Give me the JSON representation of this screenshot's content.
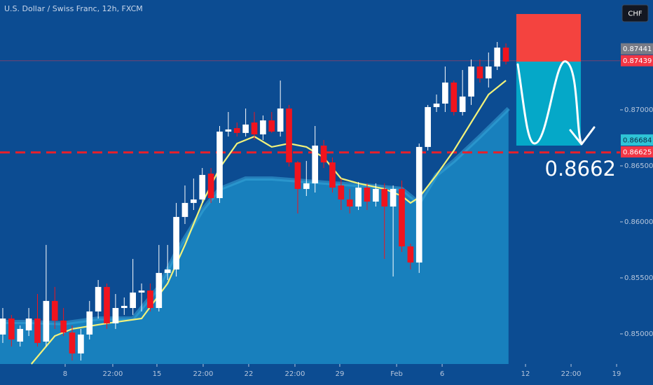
{
  "chart_data": {
    "type": "candlestick",
    "title": "U.S. Dollar / Swiss Franc, 12h, FXCM",
    "currency_button": "CHF",
    "up_color": "#ffffff",
    "down_color": "#f0141e",
    "x": [
      0,
      1,
      2,
      3,
      4,
      5,
      6,
      7,
      8,
      9,
      10,
      11,
      12,
      13,
      14,
      15,
      16,
      17,
      18,
      19,
      20,
      21,
      22,
      23,
      24,
      25,
      26,
      27,
      28,
      29,
      30,
      31,
      32,
      33,
      34,
      35,
      36,
      37,
      38,
      39,
      40,
      41,
      42,
      43,
      44,
      45,
      46,
      47,
      48,
      49,
      50,
      51,
      52,
      53,
      54,
      55,
      56,
      57,
      58
    ],
    "open": [
      0.84994,
      0.85137,
      0.84931,
      0.85031,
      0.85137,
      0.84931,
      0.85294,
      0.85119,
      0.85012,
      0.84825,
      0.84994,
      0.852,
      0.85419,
      0.85094,
      0.85231,
      0.85231,
      0.85369,
      0.85387,
      0.85231,
      0.85544,
      0.85575,
      0.86044,
      0.86169,
      0.862,
      0.86431,
      0.86212,
      0.86806,
      0.86837,
      0.86794,
      0.86887,
      0.86781,
      0.86906,
      0.86806,
      0.87012,
      0.86531,
      0.86294,
      0.86344,
      0.86681,
      0.86531,
      0.86325,
      0.862,
      0.86137,
      0.86306,
      0.86181,
      0.86294,
      0.86137,
      0.86294,
      0.85781,
      0.85637,
      0.86669,
      0.87025,
      0.87056,
      0.87244,
      0.86981,
      0.87119,
      0.87387,
      0.87281,
      0.87387,
      0.87556
    ],
    "high": [
      0.85231,
      0.85169,
      0.85075,
      0.85231,
      0.85356,
      0.85794,
      0.85419,
      0.85231,
      0.85075,
      0.85044,
      0.85294,
      0.85481,
      0.8545,
      0.85356,
      0.85325,
      0.85669,
      0.8545,
      0.8545,
      0.85794,
      0.85794,
      0.86169,
      0.86325,
      0.86387,
      0.86481,
      0.86481,
      0.86856,
      0.86981,
      0.86887,
      0.87012,
      0.86981,
      0.8695,
      0.86981,
      0.87262,
      0.87044,
      0.86544,
      0.86544,
      0.86856,
      0.86731,
      0.86575,
      0.86387,
      0.86294,
      0.86356,
      0.86344,
      0.86344,
      0.86344,
      0.86325,
      0.86369,
      0.85806,
      0.867,
      0.87044,
      0.87137,
      0.87387,
      0.87262,
      0.87356,
      0.8745,
      0.8745,
      0.87512,
      0.87606,
      0.87594
    ],
    "low": [
      0.84919,
      0.84887,
      0.84887,
      0.84981,
      0.84887,
      0.84887,
      0.85044,
      0.84981,
      0.84762,
      0.84762,
      0.8495,
      0.85137,
      0.85044,
      0.85044,
      0.85169,
      0.85169,
      0.852,
      0.852,
      0.852,
      0.85481,
      0.85512,
      0.85981,
      0.86106,
      0.86169,
      0.86169,
      0.86169,
      0.86762,
      0.86762,
      0.86762,
      0.86731,
      0.86731,
      0.86794,
      0.86762,
      0.86494,
      0.86075,
      0.86231,
      0.86262,
      0.86481,
      0.86262,
      0.86106,
      0.86075,
      0.86106,
      0.86106,
      0.86137,
      0.85669,
      0.85512,
      0.85731,
      0.85575,
      0.85544,
      0.86637,
      0.86981,
      0.86981,
      0.8695,
      0.8695,
      0.87044,
      0.87244,
      0.872,
      0.87356,
      0.87406
    ],
    "close": [
      0.85137,
      0.8495,
      0.85044,
      0.85137,
      0.84919,
      0.85294,
      0.85119,
      0.85012,
      0.84825,
      0.84994,
      0.852,
      0.85419,
      0.85094,
      0.85231,
      0.8525,
      0.85369,
      0.85387,
      0.85231,
      0.85544,
      0.85575,
      0.86044,
      0.86169,
      0.862,
      0.86419,
      0.86212,
      0.86806,
      0.86825,
      0.86794,
      0.86869,
      0.86781,
      0.86906,
      0.86806,
      0.87012,
      0.86531,
      0.86294,
      0.86344,
      0.86681,
      0.86531,
      0.86306,
      0.862,
      0.86137,
      0.86306,
      0.86181,
      0.86294,
      0.86137,
      0.86294,
      0.85781,
      0.85637,
      0.86669,
      0.87025,
      0.87056,
      0.87244,
      0.86981,
      0.87119,
      0.87387,
      0.87281,
      0.87387,
      0.87556,
      0.87431
    ],
    "overlays": [
      {
        "style": "line",
        "color": "#f2f27a",
        "x": [
          3.3,
          6,
          8,
          12,
          16,
          19,
          21,
          23,
          25,
          27,
          29,
          31,
          33,
          35,
          37,
          39,
          41,
          44,
          46,
          47,
          48,
          50,
          52,
          54,
          56,
          58
        ],
        "values": [
          0.84731,
          0.84981,
          0.85044,
          0.85094,
          0.85137,
          0.8545,
          0.85794,
          0.86169,
          0.86481,
          0.867,
          0.86762,
          0.86669,
          0.867,
          0.86669,
          0.86575,
          0.86387,
          0.86344,
          0.86294,
          0.86231,
          0.86169,
          0.86219,
          0.86419,
          0.86637,
          0.86887,
          0.87137,
          0.87262
        ]
      },
      {
        "style": "area",
        "color": "#1880bd",
        "edge_color": "#39a6d8",
        "x": [
          -0.32,
          3,
          7,
          11,
          15,
          18,
          20,
          23,
          25,
          28,
          31,
          34,
          38,
          42,
          46,
          48,
          50,
          52,
          55,
          58.3
        ],
        "values": [
          0.85106,
          0.85106,
          0.85094,
          0.85137,
          0.85137,
          0.85419,
          0.85731,
          0.86106,
          0.86294,
          0.86387,
          0.86387,
          0.86369,
          0.86344,
          0.86325,
          0.86294,
          0.86169,
          0.86419,
          0.86544,
          0.86762,
          0.87012
        ]
      }
    ],
    "position": {
      "x": [
        59.2,
        66.64
      ],
      "stop": 0.87856,
      "entry": 0.87431,
      "target": 0.86681,
      "stop_color": "#f4433f",
      "target_color": "#05a8c8"
    },
    "hline": {
      "value": 0.8662,
      "label": "0.8662",
      "color": "#e8202a"
    },
    "price_labels": [
      {
        "value": 0.87441,
        "color": "#787b86",
        "text_color": "#ffffff"
      },
      {
        "value": 0.87439,
        "color": "#f23645",
        "text_color": "#ffffff"
      },
      {
        "value": 0.86684,
        "color": "#2ec4d6",
        "text_color": "#0b2a45"
      },
      {
        "value": 0.86625,
        "color": "#f23645",
        "text_color": "#ffffff"
      }
    ],
    "xlim": [
      -0.32,
      71.16
    ],
    "xticks": [
      {
        "value": 7.19,
        "label": "8"
      },
      {
        "value": 12.68,
        "label": "22:00"
      },
      {
        "value": 17.77,
        "label": "15"
      },
      {
        "value": 23.1,
        "label": "22:00"
      },
      {
        "value": 28.35,
        "label": "22"
      },
      {
        "value": 33.68,
        "label": "22:00"
      },
      {
        "value": 38.85,
        "label": "29"
      },
      {
        "value": 45.4,
        "label": "Feb"
      },
      {
        "value": 50.65,
        "label": "6"
      },
      {
        "value": 60.26,
        "label": "12"
      },
      {
        "value": 65.51,
        "label": "22:00"
      },
      {
        "value": 70.76,
        "label": "19"
      }
    ],
    "ylim": [
      0.84731,
      0.87981
    ],
    "yticks": [
      {
        "value": 0.87,
        "label": "0.87000"
      },
      {
        "value": 0.865,
        "label": "0.86500"
      },
      {
        "value": 0.86,
        "label": "0.86000"
      },
      {
        "value": 0.855,
        "label": "0.85500"
      },
      {
        "value": 0.85,
        "label": "0.85000"
      }
    ],
    "grid": false
  }
}
